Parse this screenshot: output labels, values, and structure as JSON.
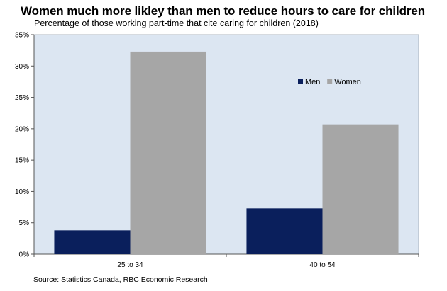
{
  "chart_data": {
    "type": "bar",
    "title": "Women much more likley than men to reduce hours to care for children",
    "subtitle": "Percentage of those working part-time that cite caring for children (2018)",
    "categories": [
      "25 to 34",
      "40 to 54"
    ],
    "series": [
      {
        "name": "Men",
        "values": [
          3.8,
          7.3
        ],
        "color": "#0a1f5c"
      },
      {
        "name": "Women",
        "values": [
          32.3,
          20.7
        ],
        "color": "#a6a6a6"
      }
    ],
    "ylim": [
      0,
      35
    ],
    "yticks": [
      0,
      5,
      10,
      15,
      20,
      25,
      30,
      35
    ],
    "ytick_labels": [
      "0%",
      "5%",
      "10%",
      "15%",
      "20%",
      "25%",
      "30%",
      "35%"
    ],
    "xlabel": "",
    "ylabel": "",
    "grid": false,
    "legend_position": "top-right",
    "plot_background": "#dce6f2",
    "source": "Source: Statistics Canada, RBC Economic Research"
  }
}
